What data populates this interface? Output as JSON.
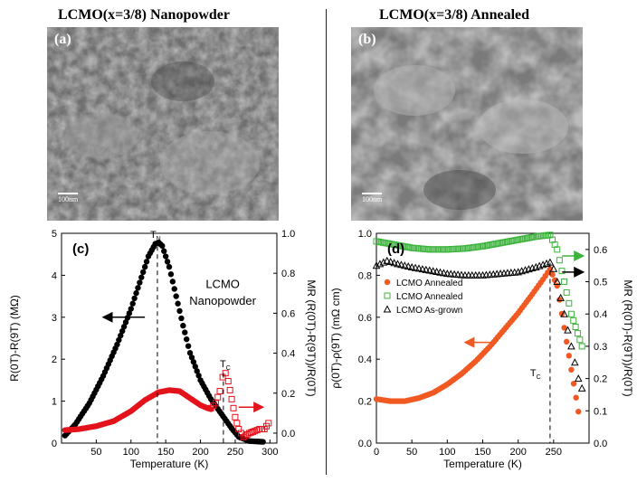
{
  "panels": {
    "a": {
      "title": "LCMO(x=3/8) Nanopowder",
      "label": "(a)",
      "scale": "100nm"
    },
    "b": {
      "title": "LCMO(x=3/8) Annealed",
      "label": "(b)",
      "scale": "100nm"
    }
  },
  "chart_data": [
    {
      "type": "scatter",
      "panel_label": "(c)",
      "xlabel": "Temperature (K)",
      "ylabel": "R(0T)-R(9T) (MΩ)",
      "ylabel2": "MR (R(0T)-R(9T))/R(0T)",
      "xlim": [
        0,
        310
      ],
      "ylim": [
        0,
        5
      ],
      "y2lim": [
        -0.05,
        1.0
      ],
      "xticks": [
        "50",
        "100",
        "150",
        "200",
        "250",
        "300"
      ],
      "yticks": [
        "0",
        "1",
        "2",
        "3",
        "4",
        "5"
      ],
      "y2ticks": [
        "0.0",
        "0.2",
        "0.4",
        "0.6",
        "0.8",
        "1.0"
      ],
      "annotations": {
        "TN": "T",
        "TN_sub": "N",
        "TC": "T",
        "TC_sub": "C",
        "sample_line1": "LCMO",
        "sample_line2": "Nanopowder"
      },
      "series": [
        {
          "axis": "left",
          "color": "#000000",
          "marker": "circle",
          "x": [
            5,
            20,
            40,
            60,
            80,
            100,
            115,
            125,
            135,
            140,
            145,
            155,
            165,
            175,
            185,
            200,
            215,
            230,
            245,
            255,
            270,
            290
          ],
          "y": [
            0.18,
            0.45,
            0.95,
            1.6,
            2.35,
            3.2,
            3.95,
            4.45,
            4.75,
            4.78,
            4.7,
            4.2,
            3.5,
            2.8,
            2.15,
            1.5,
            1.05,
            0.7,
            0.35,
            0.15,
            0.05,
            0.03
          ]
        },
        {
          "axis": "right",
          "color": "#e3121b",
          "marker": "circle",
          "x": [
            5,
            25,
            50,
            75,
            100,
            120,
            140,
            155,
            170,
            185,
            200,
            210,
            215
          ],
          "y": [
            0.015,
            0.02,
            0.035,
            0.06,
            0.11,
            0.165,
            0.205,
            0.215,
            0.21,
            0.175,
            0.14,
            0.125,
            0.12
          ]
        },
        {
          "axis": "right",
          "color": "#e3121b",
          "marker": "square-open",
          "x": [
            215,
            222,
            228,
            232,
            236,
            240,
            245,
            250,
            255,
            262,
            270,
            278,
            285,
            292,
            298
          ],
          "y": [
            0.125,
            0.15,
            0.21,
            0.28,
            0.3,
            0.26,
            0.17,
            0.08,
            0.02,
            -0.02,
            0.0,
            0.01,
            0.02,
            0.02,
            0.05
          ]
        }
      ]
    },
    {
      "type": "scatter",
      "panel_label": "(d)",
      "xlabel": "Temperature (K)",
      "ylabel": "ρ(0T)-ρ(9T) (mΩ cm)",
      "ylabel2": "MR (R(0T)-R(9T))/R(0T)",
      "xlim": [
        0,
        300
      ],
      "ylim": [
        0,
        1.0
      ],
      "y2lim": [
        0,
        0.65
      ],
      "xticks": [
        "0",
        "50",
        "100",
        "150",
        "200",
        "250"
      ],
      "yticks": [
        "0.0",
        "0.2",
        "0.4",
        "0.6",
        "0.8",
        "1.0"
      ],
      "y2ticks": [
        "0.0",
        "0.1",
        "0.2",
        "0.3",
        "0.4",
        "0.5",
        "0.6"
      ],
      "annotations": {
        "TC": "T",
        "TC_sub": "C"
      },
      "legend": [
        "LCMO Annealed",
        "LCMO Annealed",
        "LCMO As-grown"
      ],
      "series": [
        {
          "name": "LCMO Annealed",
          "axis": "left",
          "color": "#f05a22",
          "marker": "circle",
          "x": [
            0,
            20,
            40,
            60,
            80,
            100,
            120,
            140,
            160,
            180,
            200,
            220,
            235,
            245,
            255,
            265,
            275,
            285
          ],
          "y": [
            0.21,
            0.2,
            0.2,
            0.215,
            0.24,
            0.28,
            0.33,
            0.39,
            0.46,
            0.54,
            0.62,
            0.71,
            0.78,
            0.83,
            0.75,
            0.55,
            0.35,
            0.15
          ]
        },
        {
          "name": "LCMO Annealed",
          "axis": "right",
          "color": "#3cb33c",
          "marker": "square-open",
          "x": [
            0,
            25,
            50,
            75,
            100,
            125,
            150,
            175,
            200,
            225,
            245,
            255,
            265,
            275,
            290
          ],
          "y": [
            0.625,
            0.615,
            0.605,
            0.6,
            0.6,
            0.603,
            0.61,
            0.62,
            0.63,
            0.64,
            0.645,
            0.6,
            0.5,
            0.4,
            0.3
          ]
        },
        {
          "name": "LCMO As-grown",
          "axis": "right",
          "color": "#000000",
          "marker": "triangle-open",
          "x": [
            0,
            15,
            30,
            50,
            75,
            100,
            125,
            150,
            175,
            200,
            225,
            245,
            250,
            255,
            260,
            265,
            270,
            275,
            280,
            285,
            290
          ],
          "y": [
            0.55,
            0.565,
            0.555,
            0.545,
            0.535,
            0.525,
            0.52,
            0.52,
            0.525,
            0.53,
            0.545,
            0.56,
            0.54,
            0.5,
            0.45,
            0.4,
            0.35,
            0.3,
            0.25,
            0.2,
            0.17
          ]
        }
      ]
    }
  ]
}
